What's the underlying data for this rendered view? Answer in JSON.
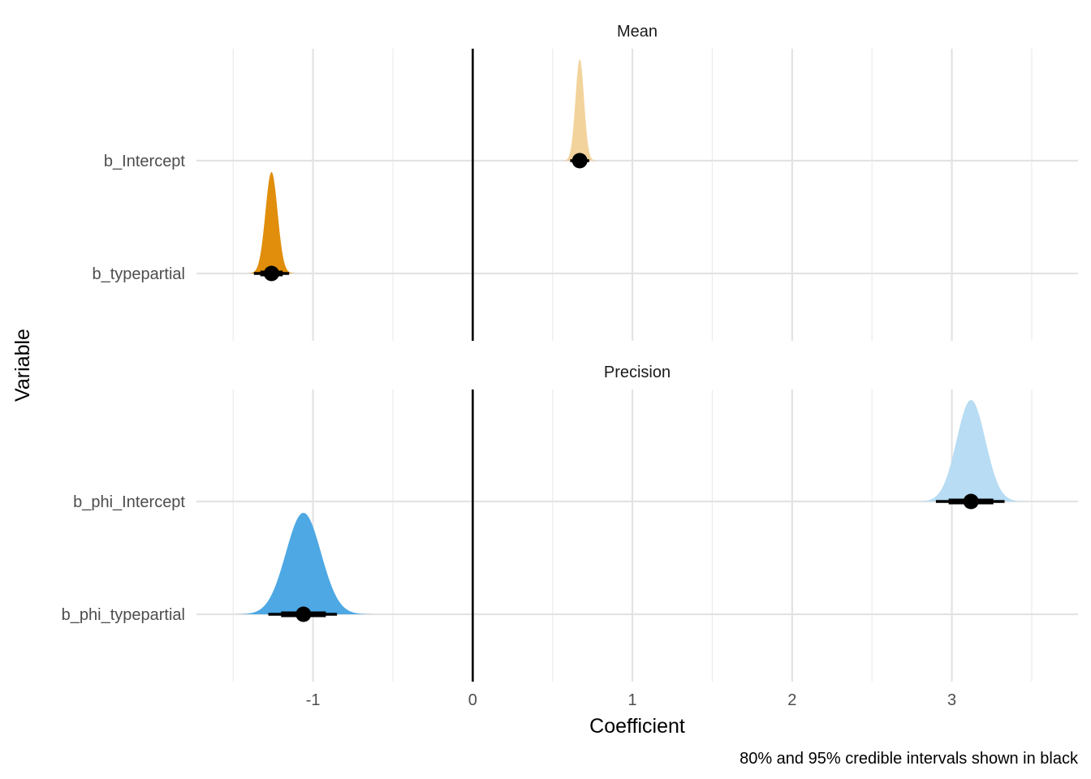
{
  "chart_data": {
    "type": "halfeye",
    "xlabel": "Coefficient",
    "ylabel": "Variable",
    "caption": "80% and 95% credible intervals shown in black",
    "xlim": [
      -1.73,
      3.79
    ],
    "x_ticks": [
      -1,
      0,
      1,
      2,
      3
    ],
    "x_tick_labels": [
      "-1",
      "0",
      "1",
      "2",
      "3"
    ],
    "x_minor_grid": [
      -1.5,
      -0.5,
      0.5,
      1.5,
      2.5,
      3.5
    ],
    "reference_line_x": 0,
    "grid": true,
    "panels": [
      {
        "title": "Mean",
        "variables": [
          {
            "name": "b_Intercept",
            "estimate": 0.67,
            "ci80": [
              0.63,
              0.71
            ],
            "ci95": [
              0.61,
              0.73
            ],
            "density_sd": 0.027,
            "color": "#F2D39B"
          },
          {
            "name": "b_typepartial",
            "estimate": -1.26,
            "ci80": [
              -1.33,
              -1.19
            ],
            "ci95": [
              -1.37,
              -1.15
            ],
            "density_sd": 0.038,
            "color": "#E08E0B"
          }
        ]
      },
      {
        "title": "Precision",
        "variables": [
          {
            "name": "b_phi_Intercept",
            "estimate": 3.12,
            "ci80": [
              2.98,
              3.26
            ],
            "ci95": [
              2.9,
              3.33
            ],
            "density_sd": 0.09,
            "color": "#B7DCF3"
          },
          {
            "name": "b_phi_typepartial",
            "estimate": -1.06,
            "ci80": [
              -1.2,
              -0.92
            ],
            "ci95": [
              -1.28,
              -0.85
            ],
            "density_sd": 0.11,
            "color": "#4DA8E4"
          }
        ]
      }
    ]
  }
}
